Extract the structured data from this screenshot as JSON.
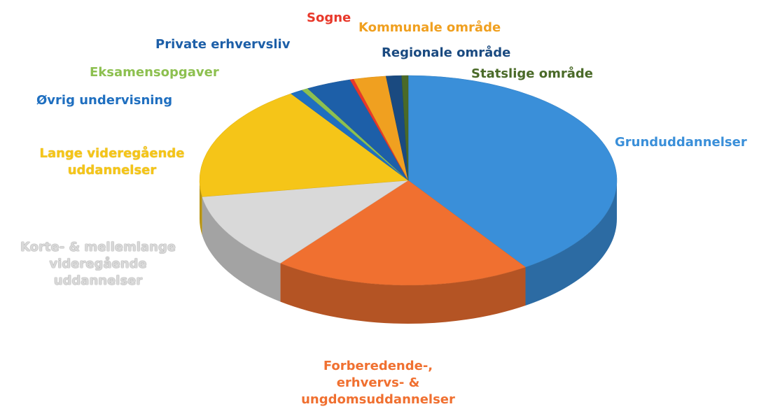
{
  "chart_data": {
    "type": "pie3d",
    "categories": [
      "Grunduddannelser",
      "Forberedende-, erhvervs- & ungdomsuddannelser",
      "Korte- & mellemlange videregående uddannelser",
      "Lange videregående uddannelser",
      "Øvrig undervisning",
      "Eksamensopgaver",
      "Private erhvervsliv",
      "Sogne",
      "Kommunale område",
      "Regionale område",
      "Statslige område"
    ],
    "values": [
      40.5,
      20,
      12,
      18,
      1,
      0.5,
      3.5,
      0.3,
      2.5,
      1.2,
      0.5
    ],
    "colors": [
      "#3a8fd9",
      "#f07030",
      "#d9d9d9",
      "#f5c518",
      "#1f6fc0",
      "#8dc050",
      "#1d5fa8",
      "#e8382a",
      "#f0a020",
      "#1a4a80",
      "#4a6a28"
    ]
  }
}
